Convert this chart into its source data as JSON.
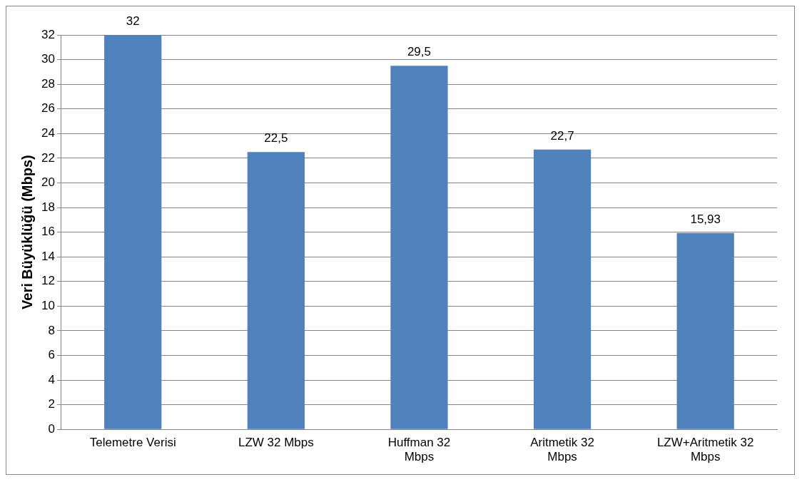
{
  "chart_data": {
    "type": "bar",
    "ylabel": "Veri Büyüklüğü (Mbps)",
    "categories": [
      "Telemetre Verisi",
      "LZW 32 Mbps",
      "Huffman 32 Mbps",
      "Aritmetik 32 Mbps",
      "LZW+Aritmetik 32 Mbps"
    ],
    "values": [
      32,
      22.5,
      29.5,
      22.7,
      15.93
    ],
    "value_labels": [
      "32",
      "22,5",
      "29,5",
      "22,7",
      "15,93"
    ],
    "color": "#4f81bd",
    "ylim": [
      0,
      32
    ],
    "yticks": [
      0,
      2,
      4,
      6,
      8,
      10,
      12,
      14,
      16,
      18,
      20,
      22,
      24,
      26,
      28,
      30,
      32
    ],
    "grid": "y",
    "legend": false
  }
}
